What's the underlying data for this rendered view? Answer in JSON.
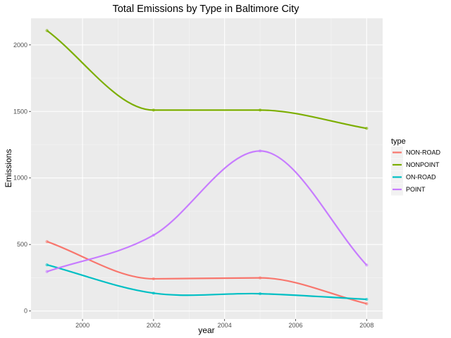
{
  "chart_data": {
    "type": "line",
    "title": "Total Emissions by Type in Baltimore City",
    "xlabel": "year",
    "ylabel": "Emissions",
    "x": [
      1999,
      2002,
      2005,
      2008
    ],
    "xlim": [
      1998.55,
      2008.45
    ],
    "ylim": [
      -60,
      2200
    ],
    "x_ticks": [
      2000,
      2002,
      2004,
      2006,
      2008
    ],
    "y_ticks": [
      0,
      500,
      1000,
      1500,
      2000
    ],
    "grid": true,
    "legend": {
      "title": "type",
      "position": "right"
    },
    "series": [
      {
        "name": "NON-ROAD",
        "color": "#F8766D",
        "values": [
          522,
          242,
          249,
          55
        ]
      },
      {
        "name": "NONPOINT",
        "color": "#7CAE00",
        "values": [
          2108,
          1510,
          1510,
          1373
        ]
      },
      {
        "name": "ON-ROAD",
        "color": "#00BFC4",
        "values": [
          347,
          134,
          130,
          88
        ]
      },
      {
        "name": "POINT",
        "color": "#C77CFF",
        "values": [
          296,
          570,
          1203,
          345
        ]
      }
    ]
  }
}
